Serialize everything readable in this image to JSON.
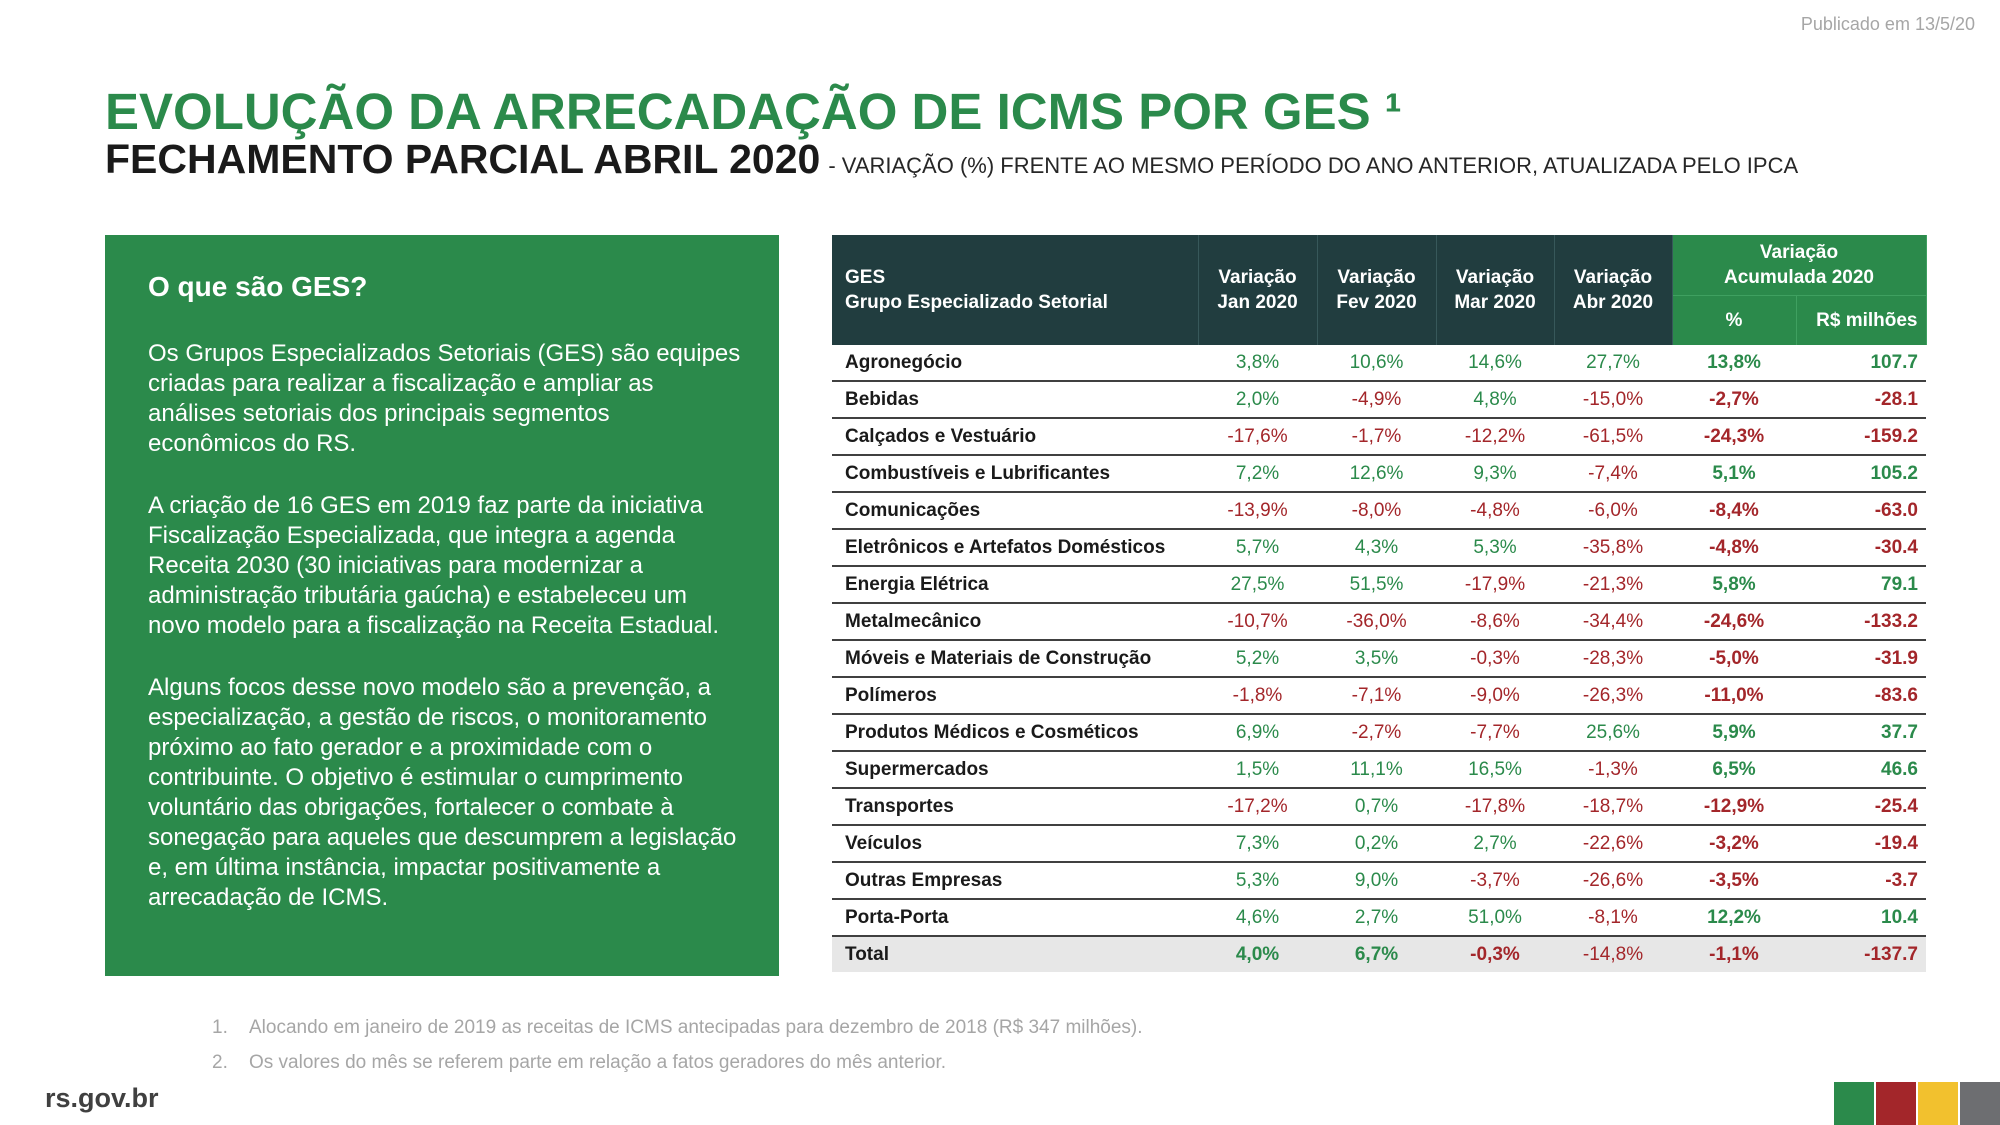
{
  "published": "Publicado em 13/5/20",
  "title": "EVOLUÇÃO DA ARRECADAÇÃO DE ICMS POR GES ¹",
  "subtitle_main": "FECHAMENTO PARCIAL ABRIL 2020",
  "subtitle_rest": "- VARIAÇÃO (%) FRENTE AO MESMO PERÍODO DO ANO ANTERIOR, ATUALIZADA PELO IPCA",
  "panel": {
    "heading": "O que são GES?",
    "p1": "Os Grupos Especializados Setoriais (GES) são equipes criadas para realizar a fiscalização e ampliar as análises setoriais dos principais segmentos econômicos do RS.",
    "p2": "A criação de 16 GES em 2019 faz parte da iniciativa Fiscalização Especializada, que integra a agenda Receita 2030 (30 iniciativas para modernizar a administração tributária gaúcha) e estabeleceu um novo modelo para a fiscalização na Receita Estadual.",
    "p3": "Alguns focos desse novo modelo são a prevenção, a especialização, a gestão de riscos, o monitoramento próximo ao fato gerador e a proximidade com o contribuinte. O objetivo é estimular o cumprimento voluntário das obrigações, fortalecer o combate à sonegação para aqueles que descumprem a legislação e, em última instância, impactar positivamente a arrecadação de ICMS."
  },
  "table": {
    "header": {
      "ges_line1": "GES",
      "ges_line2": "Grupo Especializado Setorial",
      "jan_l1": "Variação",
      "jan_l2": "Jan 2020",
      "fev_l1": "Variação",
      "fev_l2": "Fev 2020",
      "mar_l1": "Variação",
      "mar_l2": "Mar 2020",
      "abr_l1": "Variação",
      "abr_l2": "Abr 2020",
      "acc_l1": "Variação",
      "acc_l2": "Acumulada 2020",
      "acc_pct": "%",
      "acc_rs": "R$ milhões"
    },
    "rows": [
      [
        "Agronegócio",
        "3,8%",
        "10,6%",
        "14,6%",
        "27,7%",
        "13,8%",
        "107.7"
      ],
      [
        "Bebidas",
        "2,0%",
        "-4,9%",
        "4,8%",
        "-15,0%",
        "-2,7%",
        "-28.1"
      ],
      [
        "Calçados e Vestuário",
        "-17,6%",
        "-1,7%",
        "-12,2%",
        "-61,5%",
        "-24,3%",
        "-159.2"
      ],
      [
        "Combustíveis e Lubrificantes",
        "7,2%",
        "12,6%",
        "9,3%",
        "-7,4%",
        "5,1%",
        "105.2"
      ],
      [
        "Comunicações",
        "-13,9%",
        "-8,0%",
        "-4,8%",
        "-6,0%",
        "-8,4%",
        "-63.0"
      ],
      [
        "Eletrônicos e Artefatos Domésticos",
        "5,7%",
        "4,3%",
        "5,3%",
        "-35,8%",
        "-4,8%",
        "-30.4"
      ],
      [
        "Energia Elétrica",
        "27,5%",
        "51,5%",
        "-17,9%",
        "-21,3%",
        "5,8%",
        "79.1"
      ],
      [
        "Metalmecânico",
        "-10,7%",
        "-36,0%",
        "-8,6%",
        "-34,4%",
        "-24,6%",
        "-133.2"
      ],
      [
        "Móveis e Materiais de Construção",
        "5,2%",
        "3,5%",
        "-0,3%",
        "-28,3%",
        "-5,0%",
        "-31.9"
      ],
      [
        "Polímeros",
        "-1,8%",
        "-7,1%",
        "-9,0%",
        "-26,3%",
        "-11,0%",
        "-83.6"
      ],
      [
        "Produtos Médicos e Cosméticos",
        "6,9%",
        "-2,7%",
        "-7,7%",
        "25,6%",
        "5,9%",
        "37.7"
      ],
      [
        "Supermercados",
        "1,5%",
        "11,1%",
        "16,5%",
        "-1,3%",
        "6,5%",
        "46.6"
      ],
      [
        "Transportes",
        "-17,2%",
        "0,7%",
        "-17,8%",
        "-18,7%",
        "-12,9%",
        "-25.4"
      ],
      [
        "Veículos",
        "7,3%",
        "0,2%",
        "2,7%",
        "-22,6%",
        "-3,2%",
        "-19.4"
      ],
      [
        "Outras Empresas",
        "5,3%",
        "9,0%",
        "-3,7%",
        "-26,6%",
        "-3,5%",
        "-3.7"
      ],
      [
        "Porta-Porta",
        "4,6%",
        "2,7%",
        "51,0%",
        "-8,1%",
        "12,2%",
        "10.4"
      ]
    ],
    "total": [
      "Total",
      "4,0%",
      "6,7%",
      "-0,3%",
      "-14,8%",
      "-1,1%",
      "-137.7"
    ]
  },
  "footnotes": {
    "f1_num": "1.",
    "f1": "Alocando em janeiro de 2019 as receitas de ICMS antecipadas para dezembro de 2018 (R$ 347 milhões).",
    "f2_num": "2.",
    "f2": "Os valores do mês se referem parte em relação a fatos geradores do mês anterior."
  },
  "site": "rs.gov.br",
  "colors": {
    "green": "#2b8a4b",
    "dark_header": "#213d3f",
    "negative": "#a3262a",
    "bar_colors": [
      "#2b8a4b",
      "#a3262a",
      "#f2c12e",
      "#6d6e71"
    ]
  }
}
